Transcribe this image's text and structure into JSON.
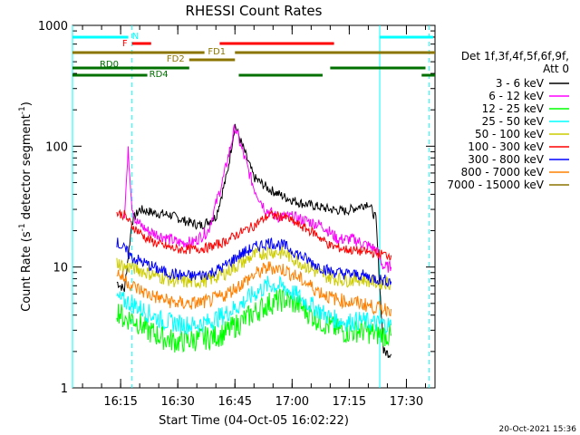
{
  "chart_data": {
    "type": "line",
    "title": "RHESSI Count Rates",
    "xlabel": "Start Time (04-Oct-05 16:02:22)",
    "ylabel_main": "Count Rate (s",
    "ylabel_sup": "-1",
    "ylabel_mid": " detector segment",
    "ylabel_sup2": "-1",
    "ylabel_end": ")",
    "y_scale": "log",
    "ylim": [
      1,
      1000
    ],
    "xlim": [
      "16:02:22",
      "17:37:30"
    ],
    "y_ticks": [
      {
        "value": 1,
        "label": "1"
      },
      {
        "value": 10,
        "label": "10"
      },
      {
        "value": 100,
        "label": "100"
      },
      {
        "value": 1000,
        "label": "1000"
      }
    ],
    "x_ticks": [
      {
        "time": "16:15",
        "label": "16:15"
      },
      {
        "time": "16:30",
        "label": "16:30"
      },
      {
        "time": "16:45",
        "label": "16:45"
      },
      {
        "time": "17:00",
        "label": "17:00"
      },
      {
        "time": "17:15",
        "label": "17:15"
      },
      {
        "time": "17:30",
        "label": "17:30"
      }
    ],
    "legend_header": [
      "Det 1f,3f,4f,5f,6f,9f,",
      "Att 0"
    ],
    "legend_placement": "right",
    "series": [
      {
        "name": "3 - 6 keV",
        "color": "#000000",
        "x": [
          "16:14",
          "16:16",
          "16:18",
          "16:20",
          "16:24",
          "16:28",
          "16:32",
          "16:36",
          "16:40",
          "16:43",
          "16:45",
          "16:47",
          "16:50",
          "16:54",
          "16:58",
          "17:02",
          "17:06",
          "17:10",
          "17:14",
          "17:18",
          "17:20",
          "17:22",
          "17:24",
          "17:26"
        ],
        "values": [
          7.5,
          6.5,
          24,
          30,
          28,
          27,
          24,
          22,
          26,
          60,
          150,
          100,
          55,
          44,
          38,
          34,
          32,
          30,
          29,
          32,
          34,
          25,
          2.0,
          1.9
        ]
      },
      {
        "name": "6 - 12 keV",
        "color": "#ff00ff",
        "x": [
          "16:16",
          "16:17",
          "16:18",
          "16:19",
          "16:22",
          "16:26",
          "16:30",
          "16:34",
          "16:38",
          "16:42",
          "16:45",
          "16:47",
          "16:50",
          "16:53",
          "16:56",
          "17:00",
          "17:04",
          "17:08",
          "17:12",
          "17:16",
          "17:20",
          "17:22",
          "17:24",
          "17:26"
        ],
        "values": [
          28,
          90,
          32,
          24,
          20,
          18,
          16,
          16,
          20,
          55,
          145,
          90,
          45,
          30,
          26,
          26,
          24,
          22,
          17,
          17,
          15,
          14,
          10,
          10
        ]
      },
      {
        "name": "12 - 25 keV",
        "color": "#00ff00",
        "x": [
          "16:14",
          "16:16",
          "16:18",
          "16:22",
          "16:26",
          "16:30",
          "16:34",
          "16:38",
          "16:42",
          "16:46",
          "16:50",
          "16:54",
          "16:58",
          "17:02",
          "17:06",
          "17:10",
          "17:14",
          "17:18",
          "17:22",
          "17:26"
        ],
        "values": [
          4.5,
          3.7,
          3.8,
          3.0,
          2.6,
          2.4,
          2.5,
          2.6,
          2.8,
          3.4,
          4.2,
          5.0,
          5.4,
          4.8,
          3.8,
          3.2,
          2.9,
          3.0,
          2.8,
          2.7
        ]
      },
      {
        "name": "25 - 50 keV",
        "color": "#00ffff",
        "x": [
          "16:14",
          "16:16",
          "16:18",
          "16:22",
          "16:26",
          "16:30",
          "16:34",
          "16:38",
          "16:42",
          "16:46",
          "16:50",
          "16:54",
          "16:58",
          "17:02",
          "17:06",
          "17:10",
          "17:14",
          "17:18",
          "17:22",
          "17:26"
        ],
        "values": [
          5.5,
          5.2,
          5.0,
          4.2,
          3.6,
          3.4,
          3.3,
          3.5,
          4.0,
          4.8,
          6.0,
          7.2,
          6.8,
          5.6,
          4.6,
          3.8,
          3.5,
          3.6,
          3.4,
          3.3
        ]
      },
      {
        "name": "50 - 100 keV",
        "color": "#cccc00",
        "x": [
          "16:14",
          "16:16",
          "16:18",
          "16:22",
          "16:26",
          "16:30",
          "16:34",
          "16:38",
          "16:42",
          "16:46",
          "16:50",
          "16:54",
          "16:58",
          "17:02",
          "17:06",
          "17:10",
          "17:14",
          "17:18",
          "17:22",
          "17:26"
        ],
        "values": [
          11,
          10,
          10,
          9,
          8.2,
          7.6,
          7.5,
          7.8,
          8.8,
          10.5,
          12.5,
          13.5,
          13,
          11,
          9.2,
          8.2,
          7.8,
          8,
          7.5,
          7.4
        ]
      },
      {
        "name": "100 - 300 keV",
        "color": "#ff0000",
        "x": [
          "16:14",
          "16:16",
          "16:18",
          "16:22",
          "16:26",
          "16:30",
          "16:34",
          "16:38",
          "16:42",
          "16:46",
          "16:50",
          "16:54",
          "16:58",
          "17:02",
          "17:06",
          "17:10",
          "17:14",
          "17:18",
          "17:22",
          "17:26"
        ],
        "values": [
          28,
          27,
          22,
          17,
          15,
          14,
          14,
          14.5,
          16,
          19,
          22,
          27,
          26,
          22,
          19,
          15,
          14,
          13.5,
          13,
          12.5
        ]
      },
      {
        "name": "300 - 800 keV",
        "color": "#0000ff",
        "x": [
          "16:14",
          "16:16",
          "16:18",
          "16:22",
          "16:26",
          "16:30",
          "16:34",
          "16:38",
          "16:42",
          "16:46",
          "16:50",
          "16:54",
          "16:58",
          "17:02",
          "17:06",
          "17:10",
          "17:14",
          "17:18",
          "17:22",
          "17:26"
        ],
        "values": [
          16,
          14,
          12,
          10.5,
          9.2,
          8.6,
          8.4,
          8.8,
          10,
          12.5,
          14.5,
          16,
          15,
          12.5,
          10.5,
          9.2,
          8.8,
          8.6,
          8.0,
          7.6
        ]
      },
      {
        "name": "800 - 7000 keV",
        "color": "#ff8000",
        "x": [
          "16:14",
          "16:16",
          "16:18",
          "16:22",
          "16:26",
          "16:30",
          "16:34",
          "16:38",
          "16:42",
          "16:46",
          "16:50",
          "16:54",
          "16:58",
          "17:02",
          "17:06",
          "17:10",
          "17:14",
          "17:18",
          "17:22",
          "17:26"
        ],
        "values": [
          9,
          8,
          7,
          6,
          5.4,
          5.0,
          5.0,
          5.2,
          5.8,
          7.0,
          8.6,
          10,
          9.5,
          8.0,
          6.6,
          5.6,
          5.2,
          5.0,
          4.6,
          4.5
        ]
      },
      {
        "name": "7000 - 15000 keV",
        "color": "#8b7500",
        "x": [],
        "values": []
      }
    ],
    "flag_bars": [
      {
        "label": "N",
        "color": "#00ffff",
        "segments": [
          [
            "16:02:22",
            "16:17"
          ],
          [
            "17:23",
            "17:37"
          ]
        ]
      },
      {
        "label": "F",
        "color": "#ff0000",
        "segments": [
          [
            "16:18",
            "16:23"
          ],
          [
            "16:41",
            "17:11"
          ]
        ]
      },
      {
        "label": "FD1",
        "color": "#8b7500",
        "segments": [
          [
            "16:02:22",
            "16:37"
          ],
          [
            "16:45",
            "17:37:30"
          ]
        ]
      },
      {
        "label": "FD2",
        "color": "#8b7500",
        "segments": [
          [
            "16:33",
            "16:45"
          ]
        ]
      },
      {
        "label": "RD0",
        "color": "#007000",
        "segments": [
          [
            "16:02:22",
            "16:33"
          ],
          [
            "17:10",
            "17:35"
          ]
        ]
      },
      {
        "label": "RD4",
        "color": "#007000",
        "segments": [
          [
            "16:02:22",
            "16:22"
          ],
          [
            "16:46",
            "17:08"
          ],
          [
            "17:34",
            "17:37:30"
          ]
        ]
      }
    ],
    "vertical_markers": [
      {
        "time": "16:02:22",
        "style": "solid",
        "color": "#00ffff"
      },
      {
        "time": "16:18",
        "style": "dashed",
        "color": "#00ffff"
      },
      {
        "time": "17:23",
        "style": "solid",
        "color": "#00ffff"
      },
      {
        "time": "17:36",
        "style": "dashed",
        "color": "#00ffff"
      }
    ],
    "timestamp": "20-Oct-2021 15:36"
  }
}
